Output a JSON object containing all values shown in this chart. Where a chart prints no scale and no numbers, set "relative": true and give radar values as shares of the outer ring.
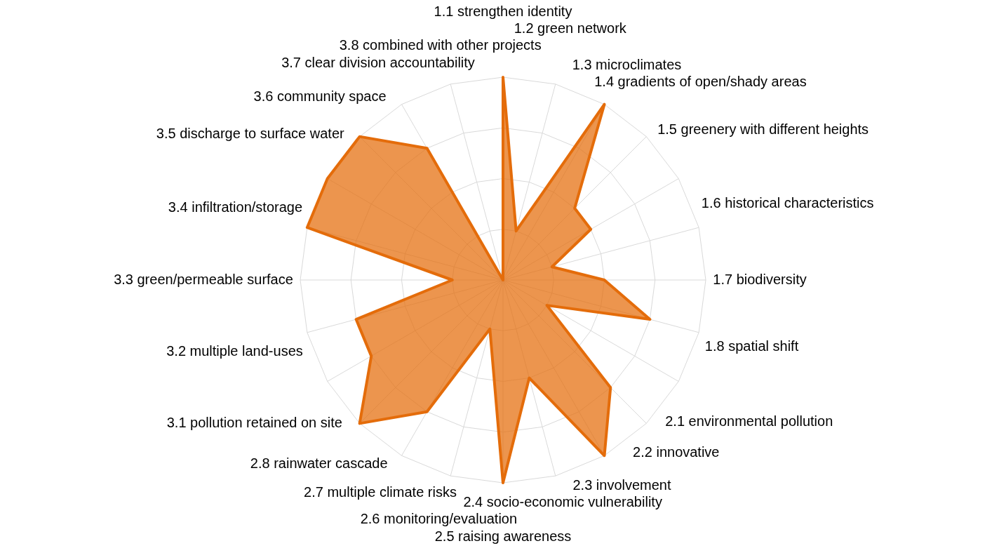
{
  "chart_data": {
    "type": "radar",
    "relative": true,
    "grid": true,
    "legend": false,
    "marker": "none",
    "categories": [
      "1.1 strengthen identity",
      "1.2 green network",
      "1.3 microclimates",
      "1.4 gradients of open/shady areas",
      "1.5 greenery with different heights",
      "1.6 historical characteristics",
      "1.7 biodiversity",
      "1.8 spatial shift",
      "2.1 environmental pollution",
      "2.2 innovative",
      "2.3 involvement",
      "2.4 socio-economic vulnerability",
      "2.5 raising awareness",
      "2.6 monitoring/evaluation",
      "2.7 multiple climate risks",
      "2.8 rainwater cascade",
      "3.1 pollution retained on site",
      "3.2 multiple land-uses",
      "3.3 green/permeable surface",
      "3.4 infiltration/storage",
      "3.5 discharge to surface water",
      "3.6 community space",
      "3.7 clear division accountability",
      "3.8 combined with other projects"
    ],
    "series": [
      {
        "color": "#e46c0a",
        "values": [
          1,
          0.25,
          1,
          0.5,
          0.5,
          0.25,
          0.5,
          0.75,
          0.25,
          0.75,
          1,
          0.5,
          1,
          0.25,
          0.75,
          1,
          0.75,
          0.75,
          0.25,
          1,
          1,
          1,
          0.75,
          0
        ]
      }
    ]
  }
}
